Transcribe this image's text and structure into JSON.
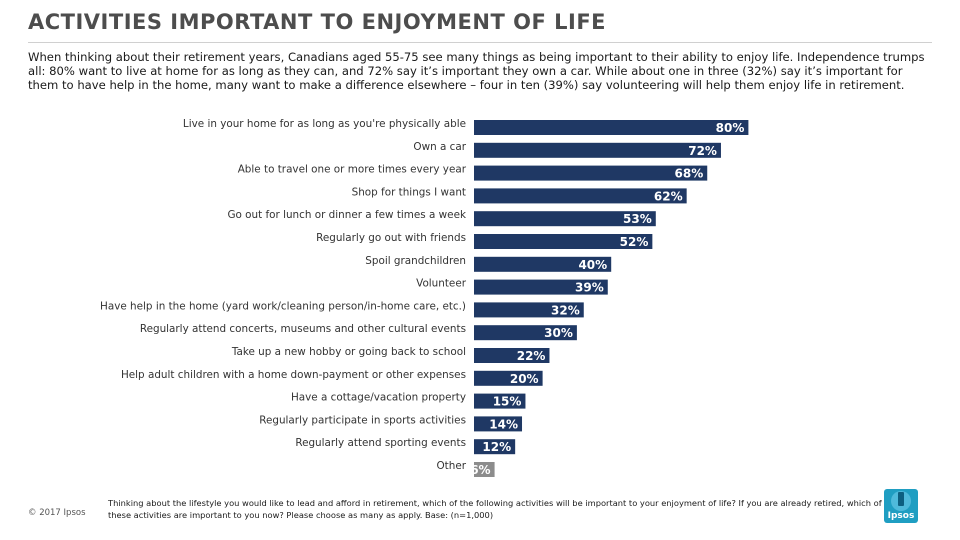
{
  "header": {
    "title": "ACTIVITIES IMPORTANT TO ENJOYMENT OF LIFE",
    "intro": "When thinking about their retirement years, Canadians aged 55-75 see many things as being important to their ability to enjoy life. Independence trumps all: 80% want to live at home for as long as they can, and 72% say it’s important they own a car.  While about one in three (32%) say it’s important for them to have help in the home, many want to make a difference elsewhere – four in ten (39%) say volunteering will help them enjoy life in retirement."
  },
  "chart_data": {
    "type": "bar",
    "orientation": "horizontal",
    "categories": [
      "Live in your home for as long as you're physically able",
      "Own a car",
      "Able to travel one or more times every year",
      "Shop for things I want",
      "Go out for lunch or dinner a few times a week",
      "Regularly go out with friends",
      "Spoil grandchildren",
      "Volunteer",
      "Have help in the home (yard work/cleaning person/in-home care, etc.)",
      "Regularly attend concerts, museums and other cultural events",
      "Take up a new hobby or going back to school",
      "Help adult children with a home down-payment  or other expenses",
      "Have a cottage/vacation property",
      "Regularly participate in sports activities",
      "Regularly attend sporting events",
      "Other"
    ],
    "values": [
      80,
      72,
      68,
      62,
      53,
      52,
      40,
      39,
      32,
      30,
      22,
      20,
      15,
      14,
      12,
      6
    ],
    "value_labels": [
      "80%",
      "72%",
      "68%",
      "62%",
      "53%",
      "52%",
      "40%",
      "39%",
      "32%",
      "30%",
      "22%",
      "20%",
      "15%",
      "14%",
      "12%",
      "6%"
    ],
    "colors": [
      "#1f3864",
      "#1f3864",
      "#1f3864",
      "#1f3864",
      "#1f3864",
      "#1f3864",
      "#1f3864",
      "#1f3864",
      "#1f3864",
      "#1f3864",
      "#1f3864",
      "#1f3864",
      "#1f3864",
      "#1f3864",
      "#1f3864",
      "#8c8c8c"
    ],
    "xlim": [
      0,
      100
    ],
    "grid": false,
    "legend": "none",
    "title": "",
    "xlabel": "",
    "ylabel": ""
  },
  "footer": {
    "copyright": "© 2017 Ipsos",
    "note": "Thinking about the lifestyle you would like to lead and afford in retirement, which of the following activities will be important to your enjoyment of life?  If you are already retired, which of these activities are important to you now? Please choose as many as apply. Base: (n=1,000)",
    "logo_text": "Ipsos"
  }
}
